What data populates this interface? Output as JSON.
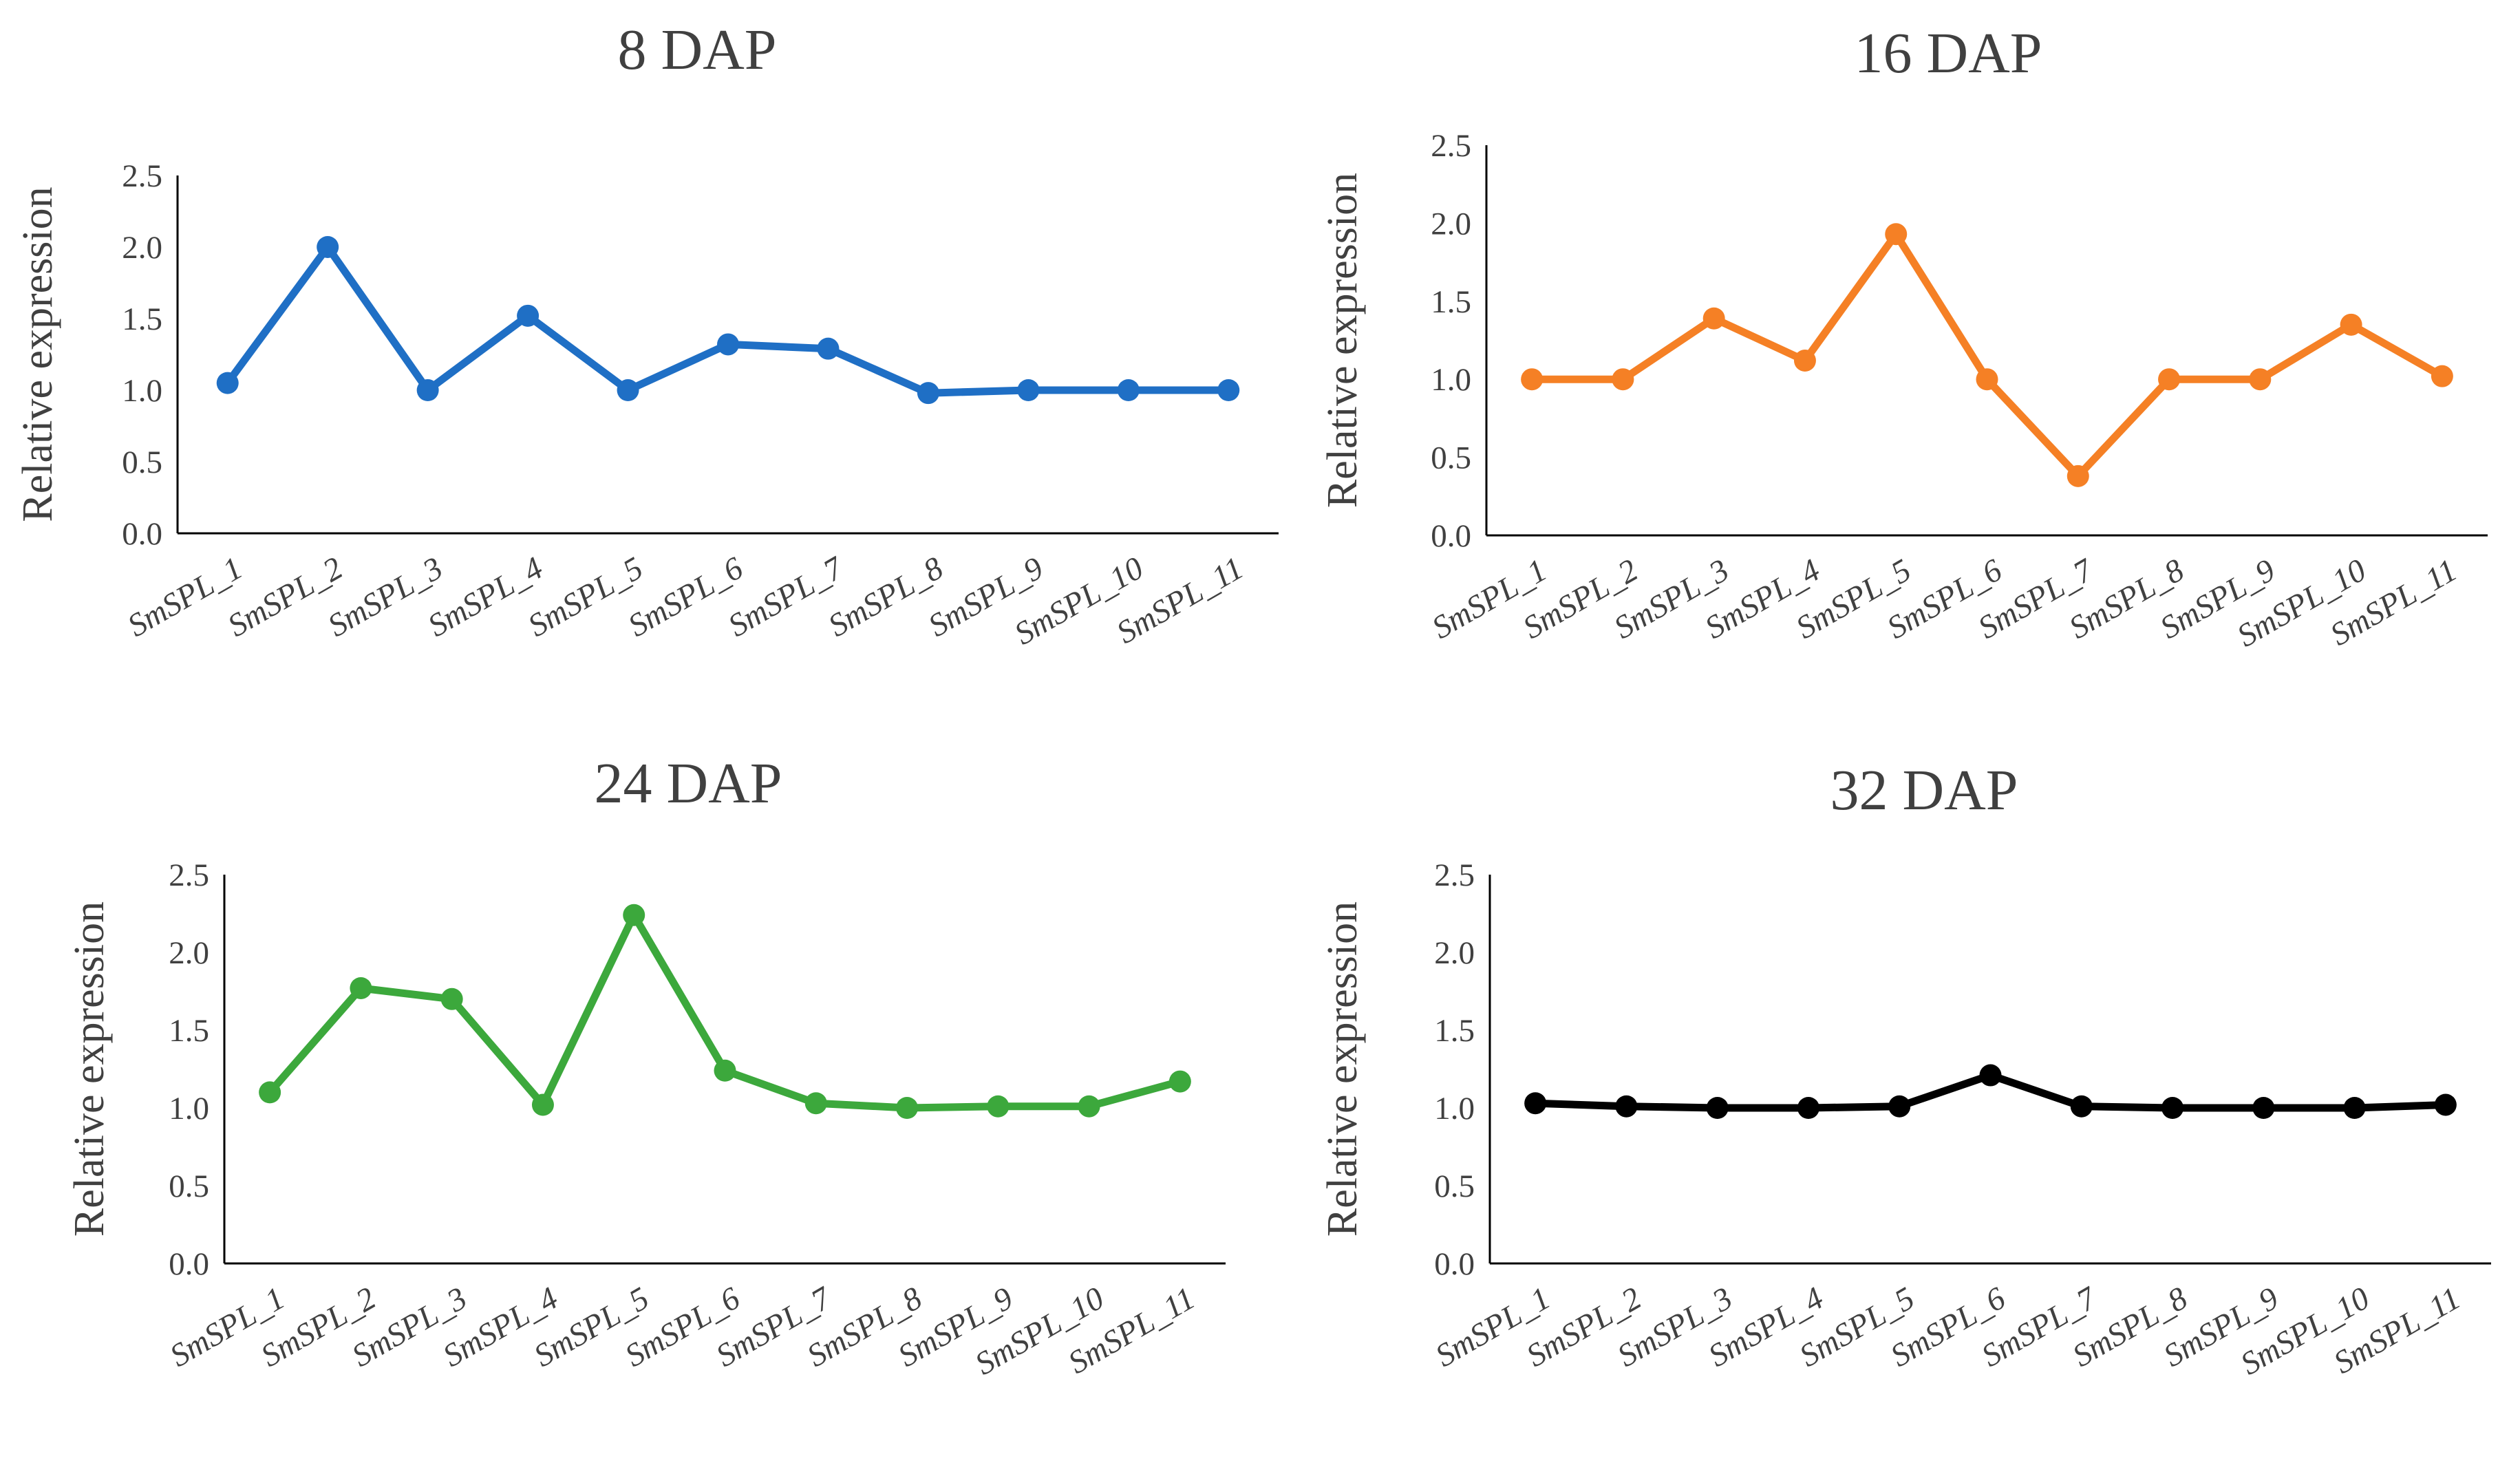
{
  "chart_data": [
    {
      "type": "line",
      "title": "8  DAP",
      "xlabel": "",
      "ylabel": "Relative expression",
      "ylim": [
        0,
        2.5
      ],
      "yticks": [
        "0.0",
        "0.5",
        "1.0",
        "1.5",
        "2.0",
        "2.5"
      ],
      "categories": [
        "SmSPL_1",
        "SmSPL_2",
        "SmSPL_3",
        "SmSPL_4",
        "SmSPL_5",
        "SmSPL_6",
        "SmSPL_7",
        "SmSPL_8",
        "SmSPL_9",
        "SmSPL_10",
        "SmSPL_11"
      ],
      "series": [
        {
          "name": "8 DAP",
          "color": "#1f6fc5",
          "values": [
            1.05,
            2.0,
            1.0,
            1.52,
            1.0,
            1.32,
            1.29,
            0.98,
            1.0,
            1.0,
            1.0
          ]
        }
      ]
    },
    {
      "type": "line",
      "title": "16  DAP",
      "xlabel": "",
      "ylabel": "Relative expression",
      "ylim": [
        0,
        2.5
      ],
      "yticks": [
        "0.0",
        "0.5",
        "1.0",
        "1.5",
        "2.0",
        "2.5"
      ],
      "categories": [
        "SmSPL_1",
        "SmSPL_2",
        "SmSPL_3",
        "SmSPL_4",
        "SmSPL_5",
        "SmSPL_6",
        "SmSPL_7",
        "SmSPL_8",
        "SmSPL_9",
        "SmSPL_10",
        "SmSPL_11"
      ],
      "series": [
        {
          "name": "16 DAP",
          "color": "#f58025",
          "values": [
            1.0,
            1.0,
            1.39,
            1.12,
            1.93,
            1.0,
            0.38,
            1.0,
            1.0,
            1.35,
            1.02
          ]
        }
      ]
    },
    {
      "type": "line",
      "title": "24  DAP",
      "xlabel": "",
      "ylabel": "Relative expression",
      "ylim": [
        0,
        2.5
      ],
      "yticks": [
        "0.0",
        "0.5",
        "1.0",
        "1.5",
        "2.0",
        "2.5"
      ],
      "categories": [
        "SmSPL_1",
        "SmSPL_2",
        "SmSPL_3",
        "SmSPL_4",
        "SmSPL_5",
        "SmSPL_6",
        "SmSPL_7",
        "SmSPL_8",
        "SmSPL_9",
        "SmSPL_10",
        "SmSPL_11"
      ],
      "series": [
        {
          "name": "24 DAP",
          "color": "#3ca83c",
          "values": [
            1.1,
            1.77,
            1.7,
            1.02,
            2.24,
            1.24,
            1.03,
            1.0,
            1.01,
            1.01,
            1.17
          ]
        }
      ]
    },
    {
      "type": "line",
      "title": "32  DAP",
      "xlabel": "",
      "ylabel": "Relative expression",
      "ylim": [
        0,
        2.5
      ],
      "yticks": [
        "0.0",
        "0.5",
        "1.0",
        "1.5",
        "2.0",
        "2.5"
      ],
      "categories": [
        "SmSPL_1",
        "SmSPL_2",
        "SmSPL_3",
        "SmSPL_4",
        "SmSPL_5",
        "SmSPL_6",
        "SmSPL_7",
        "SmSPL_8",
        "SmSPL_9",
        "SmSPL_10",
        "SmSPL_11"
      ],
      "series": [
        {
          "name": "32 DAP",
          "color": "#000000",
          "values": [
            1.03,
            1.01,
            1.0,
            1.0,
            1.01,
            1.21,
            1.01,
            1.0,
            1.0,
            1.0,
            1.02
          ]
        }
      ]
    }
  ]
}
